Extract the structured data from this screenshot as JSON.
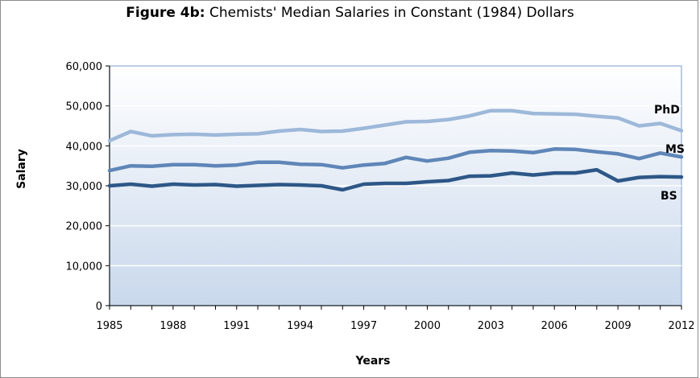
{
  "chart_data": {
    "type": "line",
    "title_lead": "Figure 4b:",
    "title_rest": " Chemists' Median Salaries in Constant (1984) Dollars",
    "xlabel": "Years",
    "ylabel": "Salary",
    "xlim": [
      1985,
      2012
    ],
    "ylim": [
      0,
      60000
    ],
    "x_ticks": [
      1985,
      1988,
      1991,
      1994,
      1997,
      2000,
      2003,
      2006,
      2009,
      2012
    ],
    "y_ticks": [
      0,
      10000,
      20000,
      30000,
      40000,
      50000,
      60000
    ],
    "y_tick_labels": [
      "0",
      "10,000",
      "20,000",
      "30,000",
      "40,000",
      "50,000",
      "60,000"
    ],
    "grid": true,
    "x": [
      1985,
      1986,
      1987,
      1988,
      1989,
      1990,
      1991,
      1992,
      1993,
      1994,
      1995,
      1996,
      1997,
      1998,
      1999,
      2000,
      2001,
      2002,
      2003,
      2004,
      2005,
      2006,
      2007,
      2008,
      2009,
      2010,
      2011,
      2012
    ],
    "series": [
      {
        "name": "PhD",
        "color": "#9db8d9",
        "values": [
          41300,
          43600,
          42500,
          42800,
          42900,
          42700,
          42900,
          43000,
          43700,
          44100,
          43600,
          43700,
          44400,
          45200,
          46000,
          46100,
          46600,
          47500,
          48800,
          48800,
          48100,
          48000,
          47900,
          47400,
          47000,
          45000,
          45600,
          43800
        ]
      },
      {
        "name": "MS",
        "color": "#5f86b8",
        "values": [
          33800,
          35000,
          34900,
          35300,
          35300,
          35000,
          35200,
          35900,
          35900,
          35400,
          35300,
          34500,
          35200,
          35600,
          37100,
          36200,
          36900,
          38400,
          38800,
          38700,
          38300,
          39200,
          39100,
          38500,
          38000,
          36800,
          38200,
          37200
        ]
      },
      {
        "name": "BS",
        "color": "#2d5787",
        "values": [
          30000,
          30400,
          29900,
          30400,
          30200,
          30300,
          29900,
          30100,
          30300,
          30200,
          30000,
          29000,
          30400,
          30600,
          30600,
          31000,
          31300,
          32400,
          32500,
          33200,
          32700,
          33200,
          33200,
          34000,
          31200,
          32100,
          32300,
          32200
        ]
      }
    ]
  }
}
